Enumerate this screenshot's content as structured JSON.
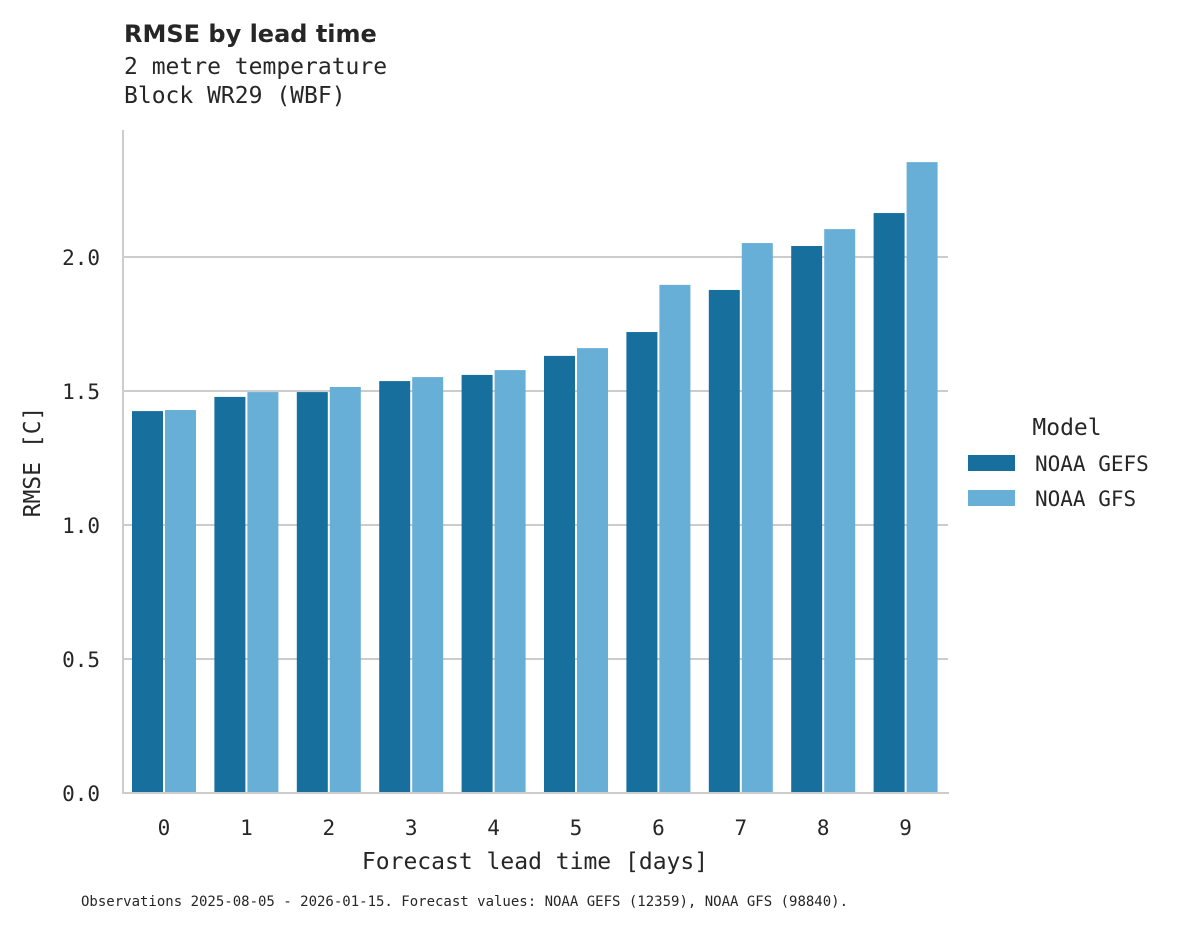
{
  "chart_data": {
    "type": "bar",
    "title": "RMSE by lead time",
    "subtitle_lines": [
      "2 metre temperature",
      "Block WR29 (WBF)"
    ],
    "xlabel": "Forecast lead time [days]",
    "ylabel": "RMSE [C]",
    "categories": [
      "0",
      "1",
      "2",
      "3",
      "4",
      "5",
      "6",
      "7",
      "8",
      "9"
    ],
    "ylim": [
      0,
      2.48
    ],
    "yticks": [
      "0.0",
      "0.5",
      "1.0",
      "1.5",
      "2.0"
    ],
    "ytick_values": [
      0,
      0.5,
      1.0,
      1.5,
      2.0
    ],
    "grid": "horizontal",
    "legend": {
      "title": "Model",
      "placement": "right"
    },
    "series": [
      {
        "name": "NOAA GEFS",
        "color": "#176f9e",
        "values": [
          1.425,
          1.478,
          1.496,
          1.537,
          1.56,
          1.631,
          1.72,
          1.877,
          2.041,
          2.164
        ]
      },
      {
        "name": "NOAA GFS",
        "color": "#67afd7",
        "values": [
          1.429,
          1.496,
          1.515,
          1.552,
          1.578,
          1.66,
          1.896,
          2.052,
          2.104,
          2.354
        ]
      }
    ],
    "footnote": "Observations 2025-08-05 - 2026-01-15. Forecast values: NOAA GEFS (12359), NOAA GFS (98840)."
  }
}
